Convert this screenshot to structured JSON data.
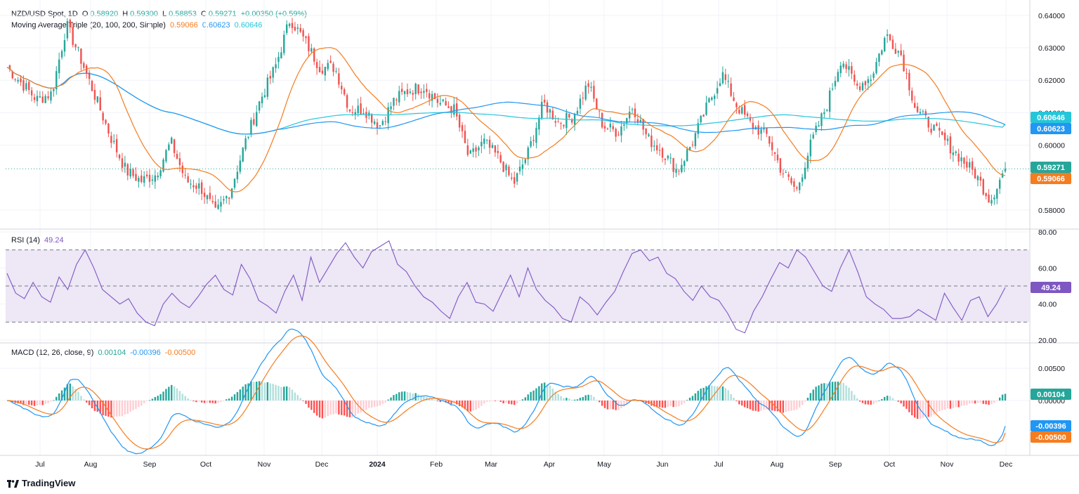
{
  "price_panel": {
    "symbol": "NZD/USD Spot, 1D",
    "open_label": "O",
    "open": "0.58920",
    "high_label": "H",
    "high": "0.59300",
    "low_label": "L",
    "low": "0.58853",
    "close_label": "C",
    "close": "0.59271",
    "change": "+0.00350 (+0.59%)",
    "ma_title": "Moving Average Triple (20, 100, 200, Simple)",
    "ma20": "0.59066",
    "ma100": "0.60623",
    "ma200": "0.60646",
    "price_ticks": [
      "0.64000",
      "0.63000",
      "0.62000",
      "0.61000",
      "0.60000",
      "0.58000"
    ],
    "tags": {
      "ma200": "0.60646",
      "ma100": "0.60623",
      "close": "0.59271",
      "ma20": "0.59066"
    }
  },
  "rsi_panel": {
    "title": "RSI (14)",
    "value": "49.24",
    "ticks": [
      "80.00",
      "60.00",
      "40.00",
      "20.00"
    ],
    "tag": "49.24"
  },
  "macd_panel": {
    "title": "MACD (12, 26, close, 9)",
    "hist": "0.00104",
    "macd": "-0.00396",
    "signal": "-0.00500",
    "ticks": [
      "0.00500",
      "0.00000"
    ],
    "tags": {
      "hist": "0.00104",
      "macd": "-0.00396",
      "signal": "-0.00500"
    }
  },
  "time_axis": [
    "Jul",
    "Aug",
    "Sep",
    "Oct",
    "Nov",
    "Dec",
    "2024",
    "Feb",
    "Mar",
    "Apr",
    "May",
    "Jun",
    "Jul",
    "Aug",
    "Sep",
    "Oct",
    "Nov",
    "Dec"
  ],
  "brand": "TradingView",
  "colors": {
    "up": "#26a69a",
    "down": "#ef5350",
    "ma20": "#f57c1f",
    "ma100": "#2196f3",
    "ma200": "#26c6da",
    "rsi": "#7e57c2",
    "rsi_band": "#ede7f6",
    "macd": "#2196f3",
    "signal": "#f57c1f",
    "hist_up_strong": "#26a69a",
    "hist_up_weak": "#b2dfdb",
    "hist_down_strong": "#ff5252",
    "hist_down_weak": "#ffcdd2"
  },
  "chart_data": [
    {
      "type": "candlestick",
      "title": "NZD/USD Spot, 1D",
      "x_range": [
        "Jun 2023",
        "Nov 2024"
      ],
      "ylim": [
        0.575,
        0.643
      ],
      "anchors": {
        "months": [
          "Jun",
          "Jul",
          "Aug",
          "Sep",
          "Oct",
          "Nov",
          "Dec",
          "Jan",
          "Feb",
          "Mar",
          "Apr",
          "May",
          "Jun",
          "Jul",
          "Aug",
          "Sep",
          "Oct",
          "Nov",
          "Dec",
          "Jan",
          "Feb",
          "Mar",
          "Apr",
          "May",
          "Jun",
          "Jul",
          "Aug",
          "Sep",
          "Oct",
          "Nov",
          "Dec",
          "Jan"
        ],
        "close_approx": [
          0.624,
          0.619,
          0.614,
          0.616,
          0.637,
          0.626,
          0.614,
          0.602,
          0.592,
          0.589,
          0.591,
          0.601,
          0.589,
          0.587,
          0.579,
          0.586,
          0.601,
          0.614,
          0.624,
          0.639,
          0.632,
          0.624,
          0.624,
          0.611,
          0.611,
          0.606,
          0.614,
          0.617,
          0.618,
          0.613,
          0.611,
          0.596,
          0.601,
          0.596,
          0.588,
          0.598,
          0.613,
          0.607,
          0.609,
          0.619,
          0.606,
          0.604,
          0.612,
          0.602,
          0.598,
          0.592,
          0.601,
          0.612,
          0.622,
          0.612,
          0.606,
          0.603,
          0.592,
          0.586,
          0.601,
          0.612,
          0.627,
          0.618,
          0.621,
          0.634,
          0.628,
          0.611,
          0.606,
          0.601,
          0.596,
          0.591,
          0.583,
          0.593
        ]
      },
      "last_close": 0.59271
    },
    {
      "type": "line",
      "title": "Moving Average Triple (20, 100, 200, Simple)",
      "series": [
        {
          "name": "20",
          "last": 0.59066
        },
        {
          "name": "100",
          "last": 0.60623
        },
        {
          "name": "200",
          "last": 0.60646
        }
      ]
    },
    {
      "type": "line",
      "title": "RSI (14)",
      "ylim": [
        20,
        80
      ],
      "band": [
        30,
        70
      ],
      "midline": 50,
      "values": [
        57,
        46,
        43,
        52,
        44,
        41,
        55,
        48,
        62,
        70,
        60,
        48,
        44,
        40,
        43,
        35,
        30,
        28,
        40,
        46,
        41,
        38,
        44,
        51,
        56,
        48,
        45,
        62,
        54,
        42,
        39,
        35,
        47,
        56,
        42,
        66,
        52,
        60,
        68,
        74,
        66,
        60,
        69,
        72,
        75,
        62,
        58,
        50,
        44,
        41,
        36,
        32,
        44,
        52,
        41,
        40,
        36,
        46,
        56,
        44,
        60,
        48,
        42,
        38,
        32,
        30,
        44,
        40,
        34,
        41,
        47,
        58,
        68,
        70,
        64,
        66,
        57,
        54,
        47,
        42,
        50,
        44,
        42,
        35,
        26,
        24,
        36,
        44,
        54,
        63,
        60,
        70,
        66,
        58,
        50,
        47,
        60,
        70,
        58,
        44,
        40,
        37,
        32,
        32,
        33,
        37,
        34,
        31,
        46,
        38,
        31,
        42,
        44,
        33,
        40,
        49.24
      ]
    },
    {
      "type": "line",
      "title": "MACD (12, 26, close, 9)",
      "series": [
        {
          "name": "MACD",
          "last": -0.00396
        },
        {
          "name": "Signal",
          "last": -0.005
        },
        {
          "name": "Histogram",
          "last": 0.00104
        }
      ],
      "ticks": [
        0.005,
        0.0
      ]
    }
  ]
}
